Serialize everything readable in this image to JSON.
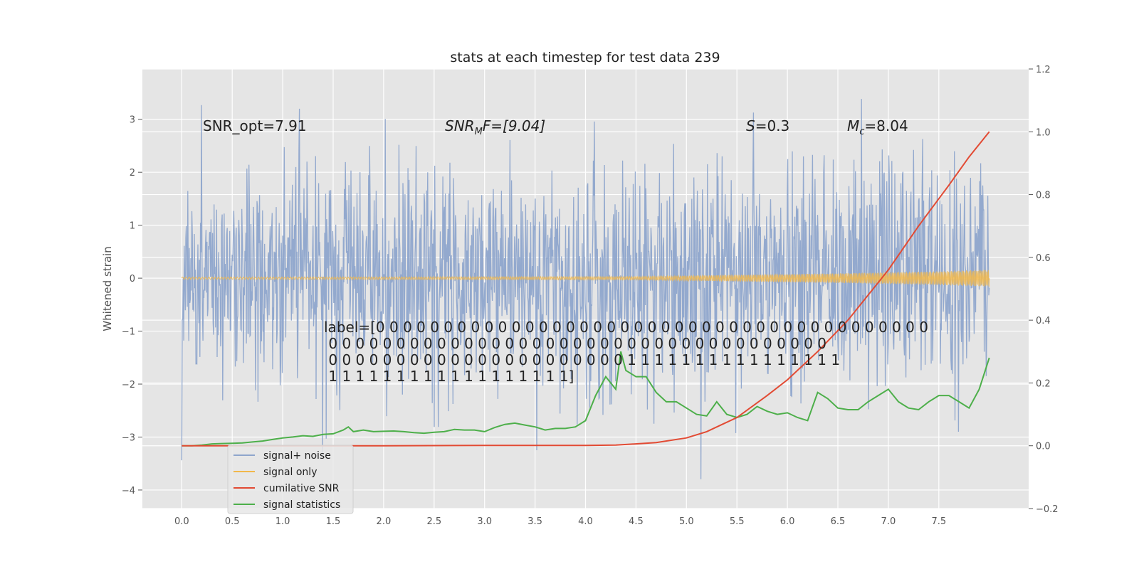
{
  "chart_data": {
    "type": "line",
    "title": "stats at each timestep for test data 239",
    "ylabel": "Whitened strain",
    "xlim": [
      -0.39,
      8.39
    ],
    "ylim": [
      -4.35,
      3.95
    ],
    "y2lim": [
      -0.2,
      1.2
    ],
    "xticks": [
      "0.0",
      "0.5",
      "1.0",
      "1.5",
      "2.0",
      "2.5",
      "3.0",
      "3.5",
      "4.0",
      "4.5",
      "5.0",
      "5.5",
      "6.0",
      "6.5",
      "7.0",
      "7.5"
    ],
    "yticks": [
      "3",
      "2",
      "1",
      "0",
      "−1",
      "−2",
      "−3",
      "−4"
    ],
    "y2ticks": [
      "1.2",
      "1.0",
      "0.8",
      "0.6",
      "0.4",
      "0.2",
      "0.0",
      "−0.2"
    ],
    "grid": true,
    "legend_position": "lower-left",
    "colors": {
      "background": "#e5e5e5",
      "grid": "#ffffff",
      "signal_noise": "#8ea5cc",
      "signal_only": "#f2b84b",
      "cumulative_snr": "#e24a33",
      "signal_statistics": "#4daf4a"
    },
    "series": [
      {
        "name": "signal+ noise",
        "axis": "left",
        "x_range": [
          0,
          8.0
        ],
        "description_values": "noise, approx range -3.8 to 3.6"
      },
      {
        "name": "signal only",
        "axis": "left",
        "x_range": [
          0,
          8.0
        ],
        "amplitude_growth": [
          [
            0,
            0.02
          ],
          [
            4.5,
            0.03
          ],
          [
            5.5,
            0.06
          ],
          [
            6.5,
            0.09
          ],
          [
            7.5,
            0.13
          ],
          [
            8.0,
            0.16
          ]
        ]
      },
      {
        "name": "cumilative SNR",
        "axis": "right",
        "x": [
          0,
          1,
          2,
          3,
          4,
          4.3,
          4.7,
          5.0,
          5.2,
          5.5,
          5.8,
          6.0,
          6.3,
          6.6,
          7.0,
          7.3,
          7.6,
          7.8,
          8.0
        ],
        "y": [
          0.0,
          0.0,
          0.0,
          0.001,
          0.001,
          0.002,
          0.01,
          0.025,
          0.045,
          0.09,
          0.16,
          0.21,
          0.3,
          0.4,
          0.56,
          0.7,
          0.83,
          0.92,
          1.0
        ]
      },
      {
        "name": "signal statistics",
        "axis": "right",
        "x": [
          0,
          0.1,
          0.2,
          0.3,
          0.4,
          0.5,
          0.6,
          0.7,
          0.8,
          0.9,
          1.0,
          1.1,
          1.2,
          1.3,
          1.4,
          1.5,
          1.6,
          1.65,
          1.7,
          1.8,
          1.9,
          2.0,
          2.1,
          2.2,
          2.3,
          2.4,
          2.5,
          2.6,
          2.7,
          2.8,
          2.9,
          3.0,
          3.1,
          3.2,
          3.3,
          3.4,
          3.5,
          3.6,
          3.7,
          3.8,
          3.9,
          4.0,
          4.1,
          4.2,
          4.3,
          4.35,
          4.4,
          4.5,
          4.6,
          4.7,
          4.8,
          4.9,
          5.0,
          5.1,
          5.2,
          5.3,
          5.4,
          5.5,
          5.6,
          5.7,
          5.8,
          5.9,
          6.0,
          6.1,
          6.2,
          6.3,
          6.4,
          6.5,
          6.6,
          6.7,
          6.8,
          6.9,
          7.0,
          7.1,
          7.2,
          7.3,
          7.4,
          7.5,
          7.6,
          7.7,
          7.8,
          7.9,
          8.0
        ],
        "y": [
          0.0,
          0.0,
          0.002,
          0.006,
          0.007,
          0.008,
          0.009,
          0.012,
          0.015,
          0.02,
          0.025,
          0.028,
          0.032,
          0.03,
          0.036,
          0.038,
          0.05,
          0.06,
          0.045,
          0.05,
          0.045,
          0.046,
          0.047,
          0.045,
          0.042,
          0.04,
          0.043,
          0.045,
          0.052,
          0.05,
          0.05,
          0.045,
          0.058,
          0.068,
          0.072,
          0.066,
          0.06,
          0.05,
          0.055,
          0.055,
          0.06,
          0.08,
          0.16,
          0.22,
          0.18,
          0.3,
          0.24,
          0.22,
          0.22,
          0.17,
          0.14,
          0.14,
          0.12,
          0.1,
          0.095,
          0.14,
          0.1,
          0.09,
          0.1,
          0.125,
          0.11,
          0.1,
          0.105,
          0.09,
          0.08,
          0.17,
          0.15,
          0.12,
          0.115,
          0.115,
          0.14,
          0.16,
          0.18,
          0.14,
          0.12,
          0.115,
          0.14,
          0.16,
          0.16,
          0.14,
          0.12,
          0.18,
          0.28
        ]
      }
    ],
    "annotations": {
      "snr_opt": "SNR_opt=7.91",
      "snr_mf_base": "SNR",
      "snr_mf_sub": "M",
      "snr_mf_rest": "F=[9.04]",
      "s_var": "S",
      "s_rest": "=0.3",
      "mc_var": "M",
      "mc_sub": "c",
      "mc_rest": "=8.04",
      "label_lines": [
        "label=[0 0 0 0 0 0 0 0 0 0 0 0 0 0 0 0 0 0 0 0 0 0 0 0 0 0 0 0 0 0 0 0 0 0 0 0 0 0 0 0 0",
        " 0 0 0 0 0 0 0 0 0 0 0 0 0 0 0 0 0 0 0 0 0 0 0 0 0 0 0 0 0 0 0 0 0 0 0 0 0",
        " 0 0 0 0 0 0 0 0 0 0 0 0 0 0 0 0 0 0 0 0 0 0 1 1 1 1 1 1 1 1 1 1 1 1 1 1 1 1",
        " 1 1 1 1 1 1 1 1 1 1 1 1 1 1 1 1 1 1]"
      ]
    }
  }
}
